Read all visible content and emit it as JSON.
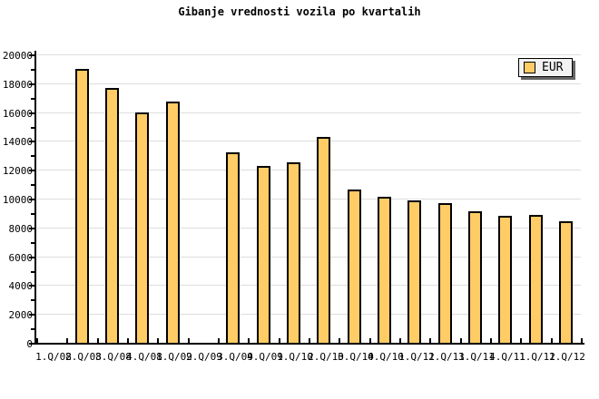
{
  "chart_data": {
    "type": "bar",
    "title": "Gibanje vrednosti vozila po kvartalih",
    "categories": [
      "1.Q/08",
      "2.Q/08",
      "3.Q/08",
      "4.Q/08",
      "1.Q/09",
      "2.Q/09",
      "3.Q/09",
      "4.Q/09",
      "1.Q/10",
      "2.Q/10",
      "3.Q/10",
      "4.Q/10",
      "1.Q/11",
      "2.Q/11",
      "3.Q/11",
      "4.Q/11",
      "1.Q/12",
      "1.Q/12"
    ],
    "series": [
      {
        "name": "EUR",
        "values": [
          null,
          19000,
          17650,
          16000,
          16700,
          null,
          13200,
          12250,
          12500,
          14300,
          10600,
          10100,
          9850,
          9700,
          9150,
          8800,
          8850,
          8400
        ]
      }
    ],
    "xlabel": "",
    "ylabel": "",
    "ylim": [
      0,
      20000
    ],
    "ytick_step": 2000,
    "ytick_minor_step": 1000,
    "ytick_labels": [
      "0",
      "2000",
      "4000",
      "6000",
      "8000",
      "10000",
      "12000",
      "14000",
      "16000",
      "18000",
      "20000"
    ],
    "grid": "horizontal major gridlines only",
    "legend_position": "top-right",
    "colors": {
      "bar_fill": "#FFCC66",
      "bar_border": "#000000",
      "grid_line": "#DDDDDD",
      "axis": "#000000",
      "background": "#FFFFFF",
      "legend_bg": "#F2F2F2",
      "legend_shadow": "#666666",
      "text": "#000000"
    }
  }
}
